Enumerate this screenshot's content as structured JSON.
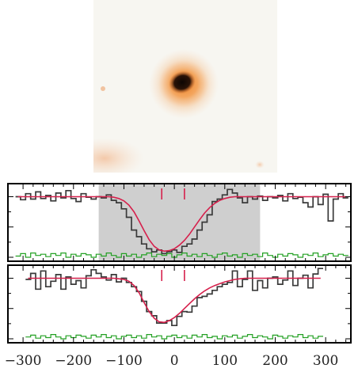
{
  "image": {
    "kind": "galaxy-cutout",
    "colors": {
      "background": "#f7f6f1",
      "glow": "#ef7f22",
      "core": "#1a0d06"
    }
  },
  "colors": {
    "observed": "#3a3a3a",
    "model": "#d6204c",
    "residual": "#22a022",
    "shade": "#cfcfcf",
    "marker": "#d6204c",
    "frame": "#000000"
  },
  "chart_data": [
    {
      "type": "line",
      "name": "panel-top",
      "xlim": [
        -330,
        350
      ],
      "ylim": [
        0,
        1.15
      ],
      "grid": false,
      "shaded_x_range": [
        -150,
        170
      ],
      "markers_x": [
        -25,
        20
      ],
      "x": [
        -310,
        -300,
        -290,
        -280,
        -270,
        -260,
        -250,
        -240,
        -230,
        -220,
        -210,
        -200,
        -190,
        -180,
        -170,
        -160,
        -150,
        -140,
        -130,
        -120,
        -110,
        -100,
        -90,
        -80,
        -70,
        -60,
        -50,
        -40,
        -30,
        -20,
        -10,
        0,
        10,
        20,
        30,
        40,
        50,
        60,
        70,
        80,
        90,
        100,
        110,
        120,
        130,
        140,
        150,
        160,
        170,
        180,
        190,
        200,
        210,
        220,
        230,
        240,
        250,
        260,
        270,
        280,
        290,
        300,
        310,
        320,
        330,
        340
      ],
      "series": [
        {
          "name": "",
          "role": "observed",
          "values": [
            1.0,
            0.95,
            1.05,
            0.96,
            1.08,
            0.97,
            1.02,
            0.93,
            1.06,
            0.98,
            1.1,
            0.97,
            0.92,
            1.05,
            0.99,
            0.96,
            1.0,
            0.98,
            1.03,
            0.94,
            0.9,
            0.8,
            0.66,
            0.45,
            0.34,
            0.22,
            0.14,
            0.09,
            0.12,
            0.06,
            0.09,
            0.12,
            0.08,
            0.18,
            0.22,
            0.3,
            0.45,
            0.58,
            0.7,
            0.92,
            0.96,
            1.03,
            1.12,
            1.06,
            0.98,
            0.9,
            1.0,
            0.96,
            1.01,
            0.94,
            1.0,
            0.98,
            1.02,
            0.93,
            1.05,
            0.97,
            0.99,
            0.9,
            0.83,
            1.0,
            0.87,
            1.04,
            0.6,
            0.96,
            1.05,
            0.98
          ]
        },
        {
          "name": "",
          "role": "model",
          "values": [
            1.0,
            1.0,
            1.0,
            1.0,
            1.0,
            1.0,
            1.0,
            1.0,
            1.0,
            1.0,
            1.0,
            1.0,
            1.0,
            1.0,
            1.0,
            1.0,
            1.0,
            1.0,
            1.0,
            0.99,
            0.97,
            0.93,
            0.86,
            0.75,
            0.6,
            0.44,
            0.29,
            0.18,
            0.12,
            0.1,
            0.11,
            0.14,
            0.2,
            0.28,
            0.38,
            0.5,
            0.62,
            0.73,
            0.82,
            0.89,
            0.94,
            0.97,
            0.99,
            1.0,
            1.0,
            1.0,
            1.0,
            1.0,
            1.0,
            1.0,
            1.0,
            1.0,
            1.0,
            1.0,
            1.0,
            1.0,
            1.0,
            1.0,
            1.0,
            1.0,
            1.0,
            1.0,
            1.0,
            1.0,
            1.0,
            1.0
          ]
        },
        {
          "name": "",
          "role": "residual",
          "values": [
            0.02,
            0.06,
            0.0,
            0.07,
            0.03,
            0.05,
            0.01,
            0.06,
            0.03,
            0.07,
            0.0,
            0.05,
            0.02,
            0.06,
            0.04,
            0.0,
            0.05,
            0.02,
            0.07,
            0.03,
            0.0,
            0.06,
            0.02,
            0.05,
            0.0,
            0.04,
            0.07,
            0.01,
            0.05,
            0.03,
            0.06,
            0.0,
            0.04,
            0.07,
            0.02,
            0.05,
            0.01,
            0.06,
            0.03,
            0.0,
            0.05,
            0.07,
            0.02,
            0.04,
            0.0,
            0.06,
            0.03,
            0.05,
            0.01,
            0.07,
            0.03,
            0.0,
            0.05,
            0.02,
            0.06,
            0.04,
            0.0,
            0.05,
            0.03,
            0.07,
            0.01,
            0.04,
            0.06,
            0.02,
            0.05,
            0.03
          ]
        }
      ]
    },
    {
      "type": "line",
      "name": "panel-bottom",
      "xlim": [
        -330,
        350
      ],
      "ylim": [
        0,
        1.15
      ],
      "grid": false,
      "markers_x": [
        -25,
        20
      ],
      "x": [
        -290,
        -280,
        -270,
        -260,
        -250,
        -240,
        -230,
        -220,
        -210,
        -200,
        -190,
        -180,
        -170,
        -160,
        -150,
        -140,
        -130,
        -120,
        -110,
        -100,
        -90,
        -80,
        -70,
        -60,
        -50,
        -40,
        -30,
        -20,
        -10,
        0,
        10,
        20,
        30,
        40,
        50,
        60,
        70,
        80,
        90,
        100,
        110,
        120,
        130,
        140,
        150,
        160,
        170,
        180,
        190,
        200,
        210,
        220,
        230,
        240,
        250,
        260,
        270,
        280,
        290
      ],
      "series": [
        {
          "name": "",
          "role": "observed",
          "values": [
            0.98,
            1.08,
            0.82,
            1.12,
            0.86,
            0.95,
            1.06,
            0.82,
            1.02,
            0.9,
            0.96,
            0.84,
            1.04,
            1.14,
            1.08,
            1.02,
            0.97,
            1.06,
            0.94,
            1.0,
            0.93,
            0.86,
            0.78,
            0.62,
            0.45,
            0.38,
            0.26,
            0.26,
            0.3,
            0.22,
            0.37,
            0.45,
            0.44,
            0.54,
            0.68,
            0.7,
            0.74,
            0.8,
            0.86,
            0.9,
            0.93,
            1.12,
            0.86,
            0.98,
            1.12,
            0.8,
            0.96,
            0.84,
            1.0,
            1.02,
            0.9,
            0.97,
            1.12,
            0.88,
            1.0,
            1.05,
            0.84,
            1.07,
            1.16
          ]
        },
        {
          "name": "",
          "role": "model",
          "values": [
            1.0,
            1.0,
            1.0,
            1.0,
            1.0,
            1.0,
            1.0,
            1.0,
            1.0,
            1.0,
            1.0,
            1.0,
            1.0,
            1.0,
            1.0,
            1.0,
            1.0,
            1.0,
            0.99,
            0.98,
            0.95,
            0.88,
            0.76,
            0.6,
            0.45,
            0.34,
            0.28,
            0.27,
            0.3,
            0.35,
            0.42,
            0.5,
            0.58,
            0.66,
            0.73,
            0.79,
            0.84,
            0.88,
            0.91,
            0.94,
            0.96,
            0.98,
            0.99,
            1.0,
            1.0,
            1.0,
            1.0,
            1.0,
            1.0,
            1.0,
            1.0,
            1.0,
            1.0,
            1.0,
            1.0,
            1.0,
            1.0,
            1.0,
            1.0
          ]
        },
        {
          "name": "",
          "role": "residual",
          "values": [
            0.03,
            0.06,
            0.01,
            0.05,
            0.02,
            0.07,
            0.03,
            0.0,
            0.05,
            0.02,
            0.06,
            0.04,
            0.01,
            0.06,
            0.03,
            0.07,
            0.02,
            0.05,
            0.0,
            0.04,
            0.06,
            0.02,
            0.05,
            0.01,
            0.07,
            0.03,
            0.05,
            0.0,
            0.04,
            0.06,
            0.02,
            0.05,
            0.01,
            0.06,
            0.03,
            0.07,
            0.02,
            0.04,
            0.0,
            0.05,
            0.03,
            0.06,
            0.01,
            0.04,
            0.07,
            0.02,
            0.05,
            0.03,
            0.0,
            0.06,
            0.04,
            0.01,
            0.05,
            0.03,
            0.07,
            0.02,
            0.05,
            0.01,
            0.04
          ]
        }
      ]
    }
  ],
  "x_ticks": [
    -300,
    -200,
    -100,
    0,
    100,
    200,
    300
  ],
  "x_tick_labels": [
    "−300",
    "−200",
    "−100",
    "0",
    "100",
    "200",
    "300"
  ]
}
